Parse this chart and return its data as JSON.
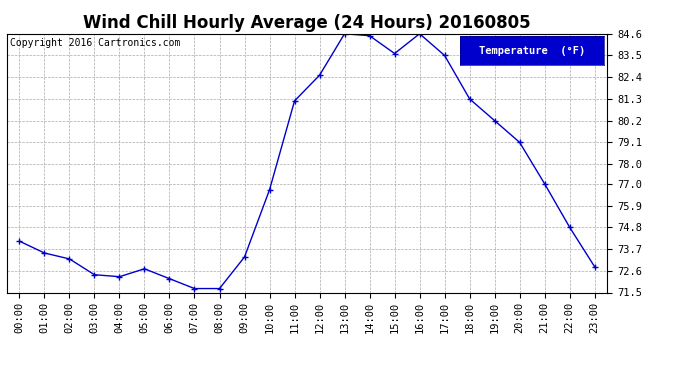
{
  "title": "Wind Chill Hourly Average (24 Hours) 20160805",
  "copyright_text": "Copyright 2016 Cartronics.com",
  "legend_label": "Temperature  (°F)",
  "x_labels": [
    "00:00",
    "01:00",
    "02:00",
    "03:00",
    "04:00",
    "05:00",
    "06:00",
    "07:00",
    "08:00",
    "09:00",
    "10:00",
    "11:00",
    "12:00",
    "13:00",
    "14:00",
    "15:00",
    "16:00",
    "17:00",
    "18:00",
    "19:00",
    "20:00",
    "21:00",
    "22:00",
    "23:00"
  ],
  "y_values": [
    74.1,
    73.5,
    73.2,
    72.4,
    72.3,
    72.7,
    72.2,
    71.7,
    71.7,
    73.3,
    76.7,
    81.2,
    82.5,
    84.6,
    84.5,
    83.6,
    84.6,
    83.5,
    81.3,
    80.2,
    79.1,
    77.0,
    74.8,
    72.8
  ],
  "ylim_min": 71.5,
  "ylim_max": 84.6,
  "yticks": [
    71.5,
    72.6,
    73.7,
    74.8,
    75.9,
    77.0,
    78.0,
    79.1,
    80.2,
    81.3,
    82.4,
    83.5,
    84.6
  ],
  "line_color": "#0000cc",
  "marker": "+",
  "marker_size": 4,
  "bg_color": "#ffffff",
  "plot_bg_color": "#ffffff",
  "grid_color": "#aaaaaa",
  "title_fontsize": 12,
  "tick_fontsize": 7.5,
  "copyright_fontsize": 7,
  "legend_bg": "#0000cc",
  "legend_text_color": "#ffffff",
  "legend_fontsize": 7.5
}
